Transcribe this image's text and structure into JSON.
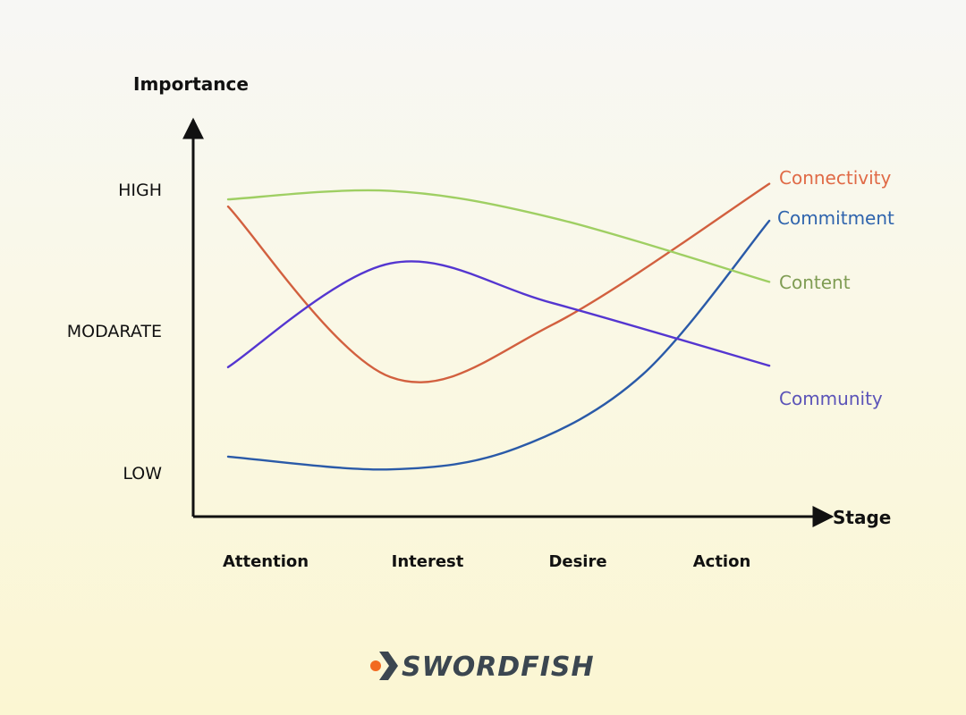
{
  "chart_data": {
    "type": "line",
    "ylabel": "Importance",
    "xlabel": "Stage",
    "y_levels": [
      {
        "label": "HIGH",
        "value": 3
      },
      {
        "label": "MODARATE",
        "value": 2
      },
      {
        "label": "LOW",
        "value": 1
      }
    ],
    "ylim": [
      0.7,
      3.5
    ],
    "x_ticks": [
      "Attention",
      "Interest",
      "Desire",
      "Action"
    ],
    "series": [
      {
        "name": "Connectivity",
        "color": "#e06a46",
        "line_color": "#d2603f",
        "points": [
          [
            0,
            2.88
          ],
          [
            0.9,
            1.68
          ],
          [
            1.8,
            2.05
          ],
          [
            3.0,
            3.04
          ]
        ]
      },
      {
        "name": "Commitment",
        "color": "#2f64ad",
        "line_color": "#2a5aa8",
        "points": [
          [
            0,
            1.12
          ],
          [
            0.9,
            1.03
          ],
          [
            1.6,
            1.18
          ],
          [
            2.3,
            1.7
          ],
          [
            3.0,
            2.78
          ]
        ]
      },
      {
        "name": "Content",
        "color": "#7f9c53",
        "line_color": "#9fcf63",
        "points": [
          [
            0,
            2.93
          ],
          [
            0.9,
            2.99
          ],
          [
            1.8,
            2.8
          ],
          [
            3.0,
            2.35
          ]
        ]
      },
      {
        "name": "Community",
        "color": "#5b54b8",
        "line_color": "#5436d0",
        "points": [
          [
            0,
            1.75
          ],
          [
            0.9,
            2.48
          ],
          [
            1.8,
            2.2
          ],
          [
            3.0,
            1.76
          ]
        ]
      }
    ],
    "grid": false,
    "legend": "labels at line ends (right)"
  },
  "brand": {
    "name": "SWORDFISH",
    "icon": "chevron-arrow-icon",
    "dot_color": "#f26a21",
    "chevron_color": "#3b4650"
  }
}
